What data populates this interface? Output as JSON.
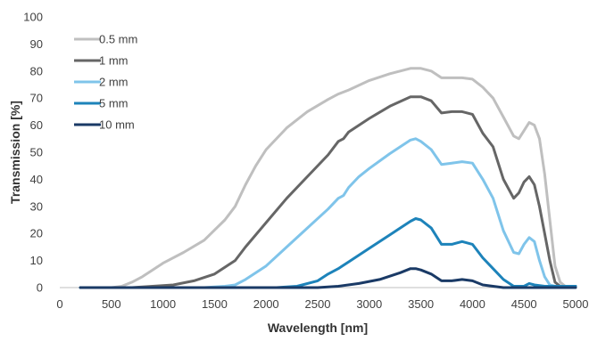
{
  "chart_data": {
    "type": "line",
    "xlabel": "Wavelength [nm]",
    "ylabel": "Transmission [%]",
    "xlim": [
      0,
      5000
    ],
    "ylim": [
      0,
      100
    ],
    "xticks": [
      "0",
      "500",
      "1000",
      "1500",
      "2000",
      "2500",
      "3000",
      "3500",
      "4000",
      "4500",
      "5000"
    ],
    "yticks": [
      "0",
      "10",
      "20",
      "30",
      "40",
      "50",
      "60",
      "70",
      "80",
      "90",
      "100"
    ],
    "grid": false,
    "legend_position": "top-left",
    "series": [
      {
        "name": "0.5 mm",
        "color": "#bfbfbf",
        "points": [
          [
            200,
            0
          ],
          [
            500,
            0
          ],
          [
            600,
            0.5
          ],
          [
            700,
            2
          ],
          [
            800,
            4
          ],
          [
            900,
            6.5
          ],
          [
            1000,
            9
          ],
          [
            1200,
            13
          ],
          [
            1400,
            17.5
          ],
          [
            1600,
            25
          ],
          [
            1700,
            30
          ],
          [
            1800,
            38
          ],
          [
            1900,
            45
          ],
          [
            2000,
            51
          ],
          [
            2200,
            59
          ],
          [
            2400,
            65
          ],
          [
            2600,
            69.5
          ],
          [
            2700,
            71.5
          ],
          [
            2800,
            73
          ],
          [
            3000,
            76.5
          ],
          [
            3200,
            79
          ],
          [
            3400,
            81
          ],
          [
            3500,
            81
          ],
          [
            3600,
            80
          ],
          [
            3700,
            77.5
          ],
          [
            3800,
            77.5
          ],
          [
            3900,
            77.5
          ],
          [
            4000,
            77
          ],
          [
            4100,
            74
          ],
          [
            4200,
            70
          ],
          [
            4300,
            63
          ],
          [
            4400,
            56
          ],
          [
            4450,
            55
          ],
          [
            4500,
            58
          ],
          [
            4550,
            61
          ],
          [
            4600,
            60
          ],
          [
            4650,
            55
          ],
          [
            4700,
            42
          ],
          [
            4750,
            25
          ],
          [
            4800,
            8
          ],
          [
            4850,
            2
          ],
          [
            4900,
            0.5
          ],
          [
            5000,
            0.5
          ]
        ]
      },
      {
        "name": "1 mm",
        "color": "#666666",
        "points": [
          [
            200,
            0
          ],
          [
            700,
            0
          ],
          [
            900,
            0.5
          ],
          [
            1100,
            1
          ],
          [
            1300,
            2.5
          ],
          [
            1500,
            5
          ],
          [
            1700,
            10
          ],
          [
            1800,
            15
          ],
          [
            2000,
            24
          ],
          [
            2200,
            33
          ],
          [
            2400,
            41
          ],
          [
            2600,
            49
          ],
          [
            2700,
            54
          ],
          [
            2750,
            55
          ],
          [
            2800,
            57.5
          ],
          [
            3000,
            62.5
          ],
          [
            3200,
            67
          ],
          [
            3400,
            70.5
          ],
          [
            3500,
            70.5
          ],
          [
            3600,
            69
          ],
          [
            3700,
            64.5
          ],
          [
            3800,
            65
          ],
          [
            3900,
            65
          ],
          [
            4000,
            64
          ],
          [
            4100,
            57
          ],
          [
            4200,
            52
          ],
          [
            4250,
            46
          ],
          [
            4300,
            40
          ],
          [
            4400,
            33
          ],
          [
            4450,
            35
          ],
          [
            4500,
            39
          ],
          [
            4550,
            41
          ],
          [
            4600,
            38
          ],
          [
            4650,
            30
          ],
          [
            4700,
            20
          ],
          [
            4750,
            10
          ],
          [
            4800,
            2
          ],
          [
            4850,
            0.5
          ],
          [
            5000,
            0.5
          ]
        ]
      },
      {
        "name": "2 mm",
        "color": "#7fc4ea",
        "points": [
          [
            200,
            0
          ],
          [
            1400,
            0
          ],
          [
            1600,
            0.5
          ],
          [
            1700,
            1
          ],
          [
            1800,
            3
          ],
          [
            2000,
            8
          ],
          [
            2200,
            15
          ],
          [
            2400,
            22
          ],
          [
            2600,
            29
          ],
          [
            2700,
            33
          ],
          [
            2750,
            34
          ],
          [
            2800,
            37
          ],
          [
            2900,
            41
          ],
          [
            3000,
            44
          ],
          [
            3200,
            49.5
          ],
          [
            3400,
            54.5
          ],
          [
            3450,
            55
          ],
          [
            3500,
            54
          ],
          [
            3600,
            51
          ],
          [
            3700,
            45.5
          ],
          [
            3800,
            46
          ],
          [
            3900,
            46.5
          ],
          [
            4000,
            46
          ],
          [
            4100,
            40
          ],
          [
            4200,
            33
          ],
          [
            4300,
            21
          ],
          [
            4400,
            13
          ],
          [
            4450,
            12.5
          ],
          [
            4500,
            16
          ],
          [
            4550,
            18.5
          ],
          [
            4600,
            17
          ],
          [
            4650,
            10
          ],
          [
            4700,
            4
          ],
          [
            4750,
            1
          ],
          [
            4800,
            0.5
          ],
          [
            5000,
            0.5
          ]
        ]
      },
      {
        "name": "5 mm",
        "color": "#1d83ba",
        "points": [
          [
            200,
            0
          ],
          [
            2100,
            0
          ],
          [
            2300,
            0.5
          ],
          [
            2500,
            2.5
          ],
          [
            2600,
            5
          ],
          [
            2700,
            7
          ],
          [
            2800,
            9.5
          ],
          [
            3000,
            14.5
          ],
          [
            3200,
            19.5
          ],
          [
            3400,
            24.5
          ],
          [
            3450,
            25.5
          ],
          [
            3500,
            25
          ],
          [
            3600,
            22
          ],
          [
            3700,
            16
          ],
          [
            3800,
            16
          ],
          [
            3900,
            17
          ],
          [
            4000,
            16
          ],
          [
            4100,
            11
          ],
          [
            4200,
            7
          ],
          [
            4300,
            3
          ],
          [
            4400,
            0.5
          ],
          [
            4500,
            0.5
          ],
          [
            4550,
            1.5
          ],
          [
            4600,
            1
          ],
          [
            4700,
            0.5
          ],
          [
            5000,
            0.5
          ]
        ]
      },
      {
        "name": "10 mm",
        "color": "#1a3a66",
        "points": [
          [
            200,
            0
          ],
          [
            2500,
            0
          ],
          [
            2700,
            0.5
          ],
          [
            2900,
            1.5
          ],
          [
            3100,
            3
          ],
          [
            3300,
            5.5
          ],
          [
            3400,
            7
          ],
          [
            3450,
            7
          ],
          [
            3500,
            6.5
          ],
          [
            3600,
            5
          ],
          [
            3700,
            2.5
          ],
          [
            3800,
            2.5
          ],
          [
            3900,
            3
          ],
          [
            4000,
            2.5
          ],
          [
            4100,
            1
          ],
          [
            4200,
            0.5
          ],
          [
            4300,
            0
          ],
          [
            5000,
            0
          ]
        ]
      }
    ]
  }
}
